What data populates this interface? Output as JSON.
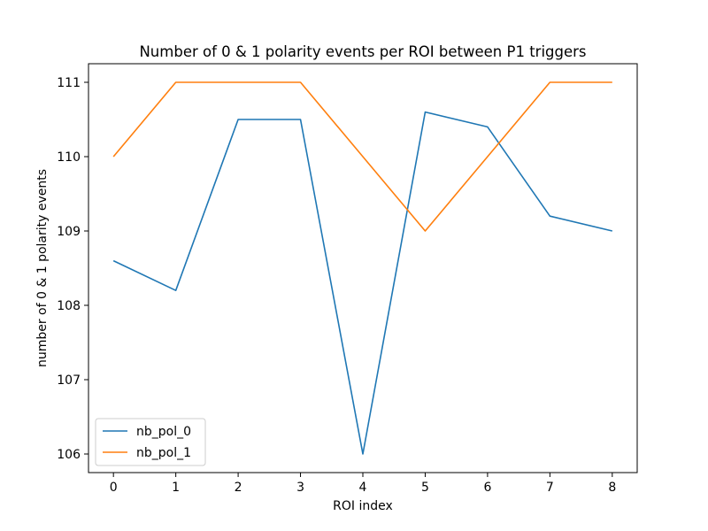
{
  "chart_data": {
    "type": "line",
    "title": "Number of 0 & 1 polarity events per ROI between P1 triggers",
    "xlabel": "ROI index",
    "ylabel": "number of 0 & 1 polarity events",
    "x": [
      0,
      1,
      2,
      3,
      4,
      5,
      6,
      7,
      8
    ],
    "xlim": [
      -0.4,
      8.4
    ],
    "ylim": [
      105.75,
      111.25
    ],
    "xticks": [
      0,
      1,
      2,
      3,
      4,
      5,
      6,
      7,
      8
    ],
    "yticks": [
      106,
      107,
      108,
      109,
      110,
      111
    ],
    "grid": false,
    "legend_position": "lower-left",
    "series": [
      {
        "name": "nb_pol_0",
        "color": "#1f77b4",
        "values": [
          108.6,
          108.2,
          110.5,
          110.5,
          106.0,
          110.6,
          110.4,
          109.2,
          109.0
        ]
      },
      {
        "name": "nb_pol_1",
        "color": "#ff7f0e",
        "values": [
          110,
          111,
          111,
          111,
          110,
          109,
          110,
          111,
          111
        ]
      }
    ]
  }
}
